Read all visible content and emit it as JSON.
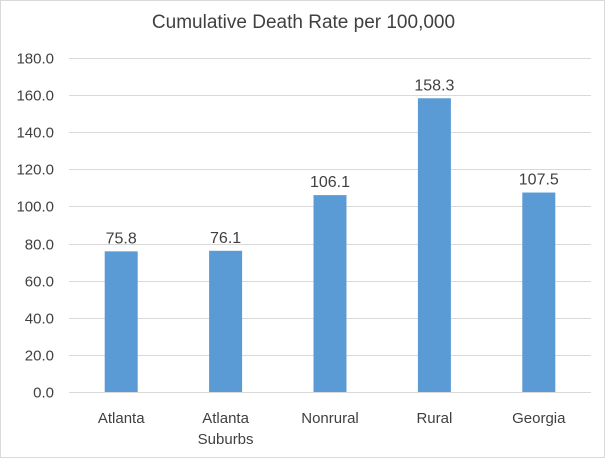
{
  "chart_data": {
    "type": "bar",
    "title": "Cumulative Death Rate per 100,000",
    "categories": [
      [
        "Atlanta"
      ],
      [
        "Atlanta",
        "Suburbs"
      ],
      [
        "Nonrural"
      ],
      [
        "Rural"
      ],
      [
        "Georgia"
      ]
    ],
    "values": [
      75.8,
      76.1,
      106.1,
      158.3,
      107.5
    ],
    "value_labels": [
      "75.8",
      "76.1",
      "106.1",
      "158.3",
      "107.5"
    ],
    "xlabel": "",
    "ylabel": "",
    "ylim": [
      0,
      180
    ],
    "yticks": [
      "0.0",
      "20.0",
      "40.0",
      "60.0",
      "80.0",
      "100.0",
      "120.0",
      "140.0",
      "160.0",
      "180.0"
    ],
    "grid": true,
    "legend": "none",
    "bar_color": "#5b9bd5",
    "grid_color": "#d9d9d9",
    "text_color": "#404040"
  }
}
